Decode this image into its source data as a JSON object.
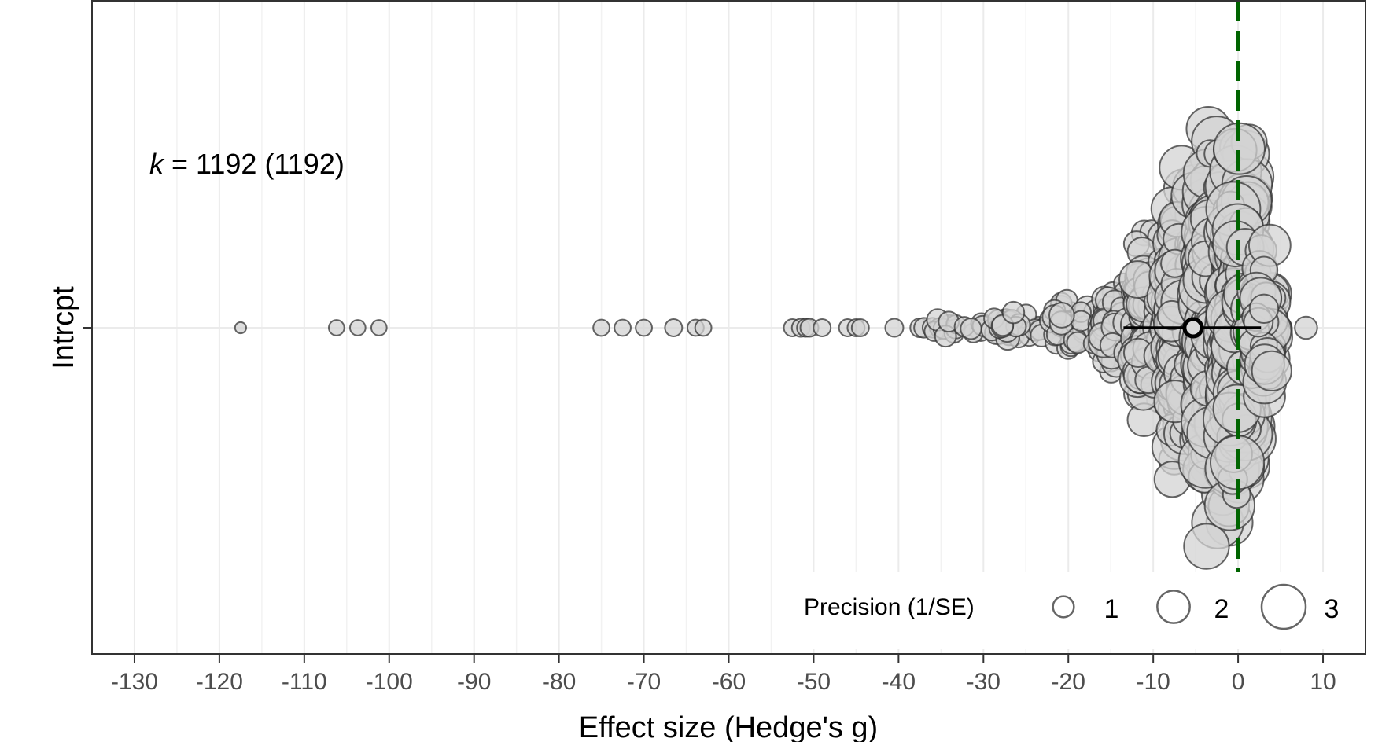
{
  "chart_data": {
    "type": "scatter",
    "subtype": "orchard plot",
    "xlabel": "Effect size (Hedge's g)",
    "ylabel": "Intrcpt",
    "xlim": [
      -135,
      15
    ],
    "x_ticks": [
      -130,
      -120,
      -110,
      -100,
      -90,
      -80,
      -70,
      -60,
      -50,
      -40,
      -30,
      -20,
      -10,
      0,
      10
    ],
    "x_tick_labels": [
      "-130",
      "-120",
      "-110",
      "-100",
      "-90",
      "-80",
      "-70",
      "-60",
      "-50",
      "-40",
      "-30",
      "-20",
      "-10",
      "0",
      "10"
    ],
    "category": "Intrcpt",
    "annotation": {
      "k_symbol": "k",
      "k_text": " = 1192 (1192)",
      "k": 1192,
      "k_studies": 1192
    },
    "estimate": {
      "mean": -5.3,
      "ci_low": -13.5,
      "ci_high": 2.7
    },
    "reference_line": {
      "x": 0,
      "style": "dashed",
      "color": "#006400"
    },
    "point_fill": "#d3d3d3",
    "point_stroke": "#333333",
    "grid": true,
    "legend": {
      "title": "Precision (1/SE)",
      "position": "bottom-right",
      "items": [
        {
          "label": "1",
          "value": 1
        },
        {
          "label": "2",
          "value": 2
        },
        {
          "label": "3",
          "value": 3
        }
      ]
    },
    "outlier_points": [
      {
        "x": -117.5,
        "precision": 0.1
      },
      {
        "x": -106.2,
        "precision": 0.35
      },
      {
        "x": -103.7,
        "precision": 0.35
      },
      {
        "x": -101.2,
        "precision": 0.35
      },
      {
        "x": -75.0,
        "precision": 0.4
      },
      {
        "x": -72.5,
        "precision": 0.4
      },
      {
        "x": -70.0,
        "precision": 0.4
      },
      {
        "x": -66.5,
        "precision": 0.45
      },
      {
        "x": -63.9,
        "precision": 0.4
      },
      {
        "x": -63.0,
        "precision": 0.4
      },
      {
        "x": -52.5,
        "precision": 0.45
      },
      {
        "x": -51.5,
        "precision": 0.5
      },
      {
        "x": -50.9,
        "precision": 0.5
      },
      {
        "x": -50.5,
        "precision": 0.5
      },
      {
        "x": -49.0,
        "precision": 0.45
      },
      {
        "x": -46.0,
        "precision": 0.45
      },
      {
        "x": -45.0,
        "precision": 0.45
      },
      {
        "x": -44.5,
        "precision": 0.45
      },
      {
        "x": -40.5,
        "precision": 0.5
      },
      {
        "x": -37.5,
        "precision": 0.55
      },
      {
        "x": -37.0,
        "precision": 0.6
      },
      {
        "x": -36.0,
        "precision": 0.6
      },
      {
        "x": 5.0,
        "precision": 0.75
      },
      {
        "x": 8.0,
        "precision": 0.75
      }
    ],
    "distribution_bands": [
      {
        "x_from": -36,
        "x_to": -29,
        "count": 18,
        "prec_min": 0.5,
        "prec_max": 0.7,
        "half_height": 0.05
      },
      {
        "x_from": -29,
        "x_to": -22,
        "count": 30,
        "prec_min": 0.5,
        "prec_max": 0.8,
        "half_height": 0.07
      },
      {
        "x_from": -22,
        "x_to": -16,
        "count": 45,
        "prec_min": 0.6,
        "prec_max": 0.9,
        "half_height": 0.12
      },
      {
        "x_from": -16,
        "x_to": -12,
        "count": 70,
        "prec_min": 0.6,
        "prec_max": 1.2,
        "half_height": 0.2
      },
      {
        "x_from": -12,
        "x_to": -8,
        "count": 140,
        "prec_min": 0.8,
        "prec_max": 1.6,
        "half_height": 0.42
      },
      {
        "x_from": -8,
        "x_to": -4,
        "count": 240,
        "prec_min": 0.9,
        "prec_max": 2.2,
        "half_height": 0.7
      },
      {
        "x_from": -4,
        "x_to": -1,
        "count": 320,
        "prec_min": 1.0,
        "prec_max": 2.6,
        "half_height": 0.86
      },
      {
        "x_from": -1,
        "x_to": 1.5,
        "count": 240,
        "prec_min": 1.0,
        "prec_max": 2.6,
        "half_height": 0.8
      },
      {
        "x_from": 1.5,
        "x_to": 4,
        "count": 85,
        "prec_min": 0.9,
        "prec_max": 2.0,
        "half_height": 0.35
      }
    ]
  }
}
